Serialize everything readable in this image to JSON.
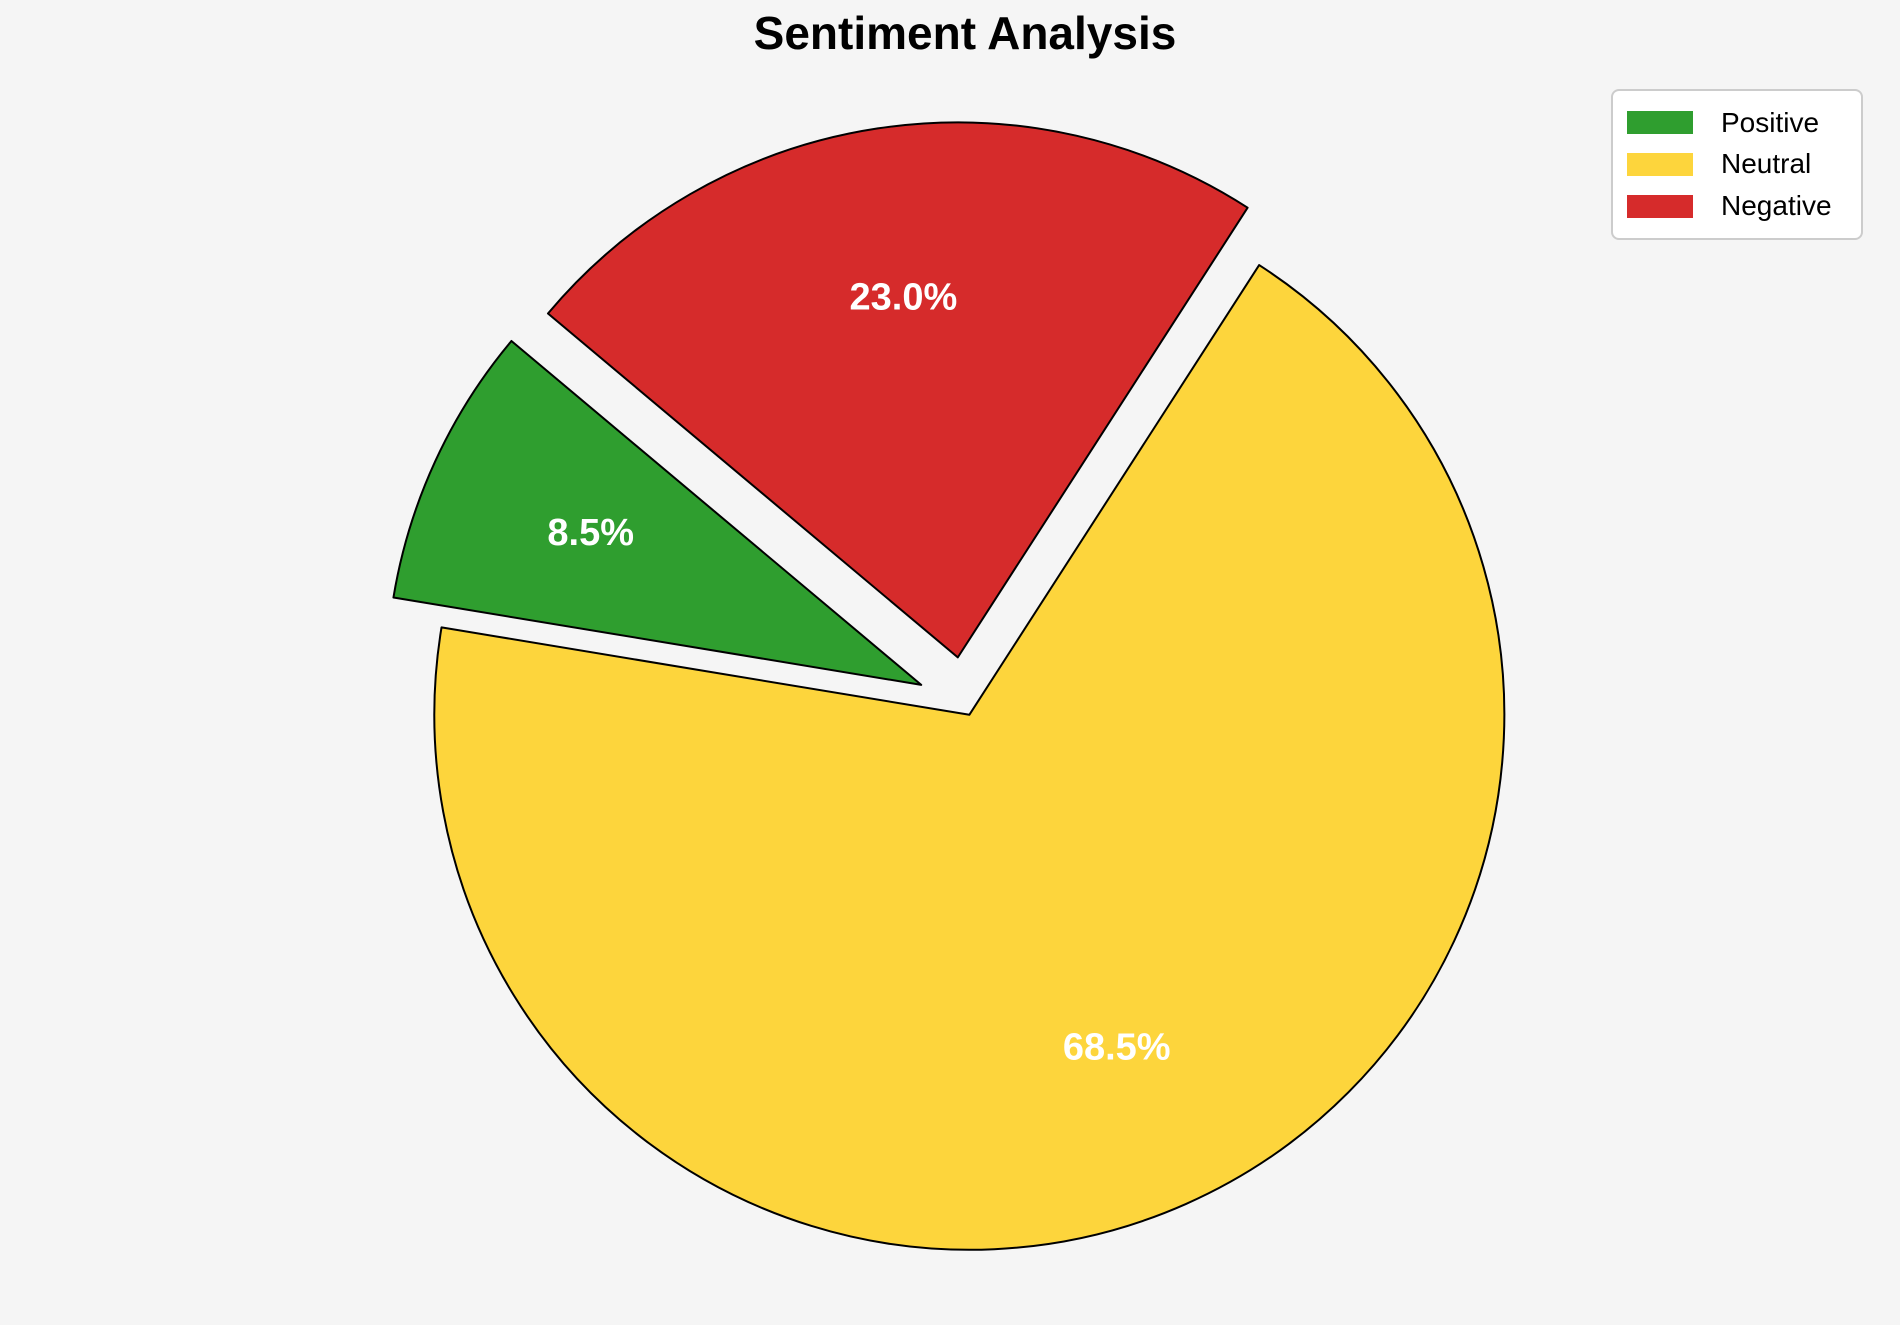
{
  "figure": {
    "background_color": "#f5f5f5"
  },
  "chart_data": {
    "type": "pie",
    "title": "Sentiment Analysis",
    "series": [
      {
        "label": "Positive",
        "value": 8.5,
        "percent_label": "8.5%",
        "color": "#2F9E2F"
      },
      {
        "label": "Neutral",
        "value": 68.5,
        "percent_label": "68.5%",
        "color": "#FDD53C"
      },
      {
        "label": "Negative",
        "value": 23.0,
        "percent_label": "23.0%",
        "color": "#D62B2B"
      }
    ],
    "legend": {
      "position": "upper right",
      "entries": [
        "Positive",
        "Neutral",
        "Negative"
      ],
      "background_color": "#ffffff",
      "border_color": "#cccccc"
    },
    "layout_hints": {
      "startangle": 140,
      "counterclock": true,
      "explode": [
        0.09,
        0.02,
        0.09
      ],
      "pctdistance": 0.68,
      "wedge_edge_color": "#000000",
      "wedge_edge_width": 2,
      "percent_label_color": "#ffffff"
    }
  }
}
